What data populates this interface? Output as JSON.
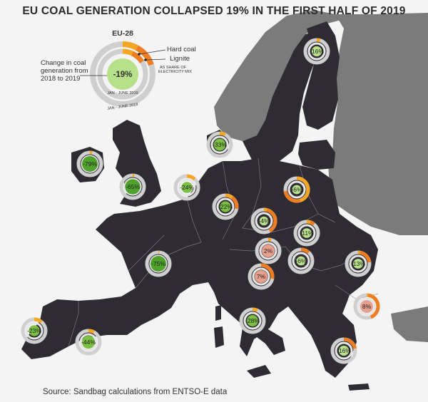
{
  "title": "EU COAL GENERATION COLLAPSED 19% IN THE FIRST HALF OF 2019",
  "source": "Source: Sandbag calculations from ENTSO-E data",
  "colors": {
    "hard_coal": "#f5a623",
    "lignite": "#ef7d22",
    "ring_bg": "#cfcfcf",
    "decrease": "#7bc043",
    "decrease_light": "#b9e08a",
    "decrease_dark": "#4fa32c",
    "increase": "#e8a08e",
    "land": "#2f2b33",
    "non_eu_land": "#7a7a7a",
    "sea": "#f4f4f4"
  },
  "legend": {
    "region": "EU-28",
    "value": "-19%",
    "hard_coal_label": "Hard coal",
    "lignite_label": "Lignite",
    "share_note_line1": "AS SHARE OF",
    "share_note_line2": "ELECTRICITY MIX",
    "change_note_line1": "Change in coal",
    "change_note_line2": "generation from",
    "change_note_line3": "2018 to 2019",
    "period_inner": "JAN - JUNE 2019",
    "period_outer": "JAN - JUNE 2018"
  },
  "countries": [
    {
      "id": "finland",
      "value": "-16%",
      "change": -16,
      "hard": 0.05,
      "lignite": 0.0
    },
    {
      "id": "denmark",
      "value": "-33%",
      "change": -33,
      "hard": 0.08,
      "lignite": 0.0
    },
    {
      "id": "ireland",
      "value": "-79%",
      "change": -79,
      "hard": 0.03,
      "lignite": 0.0
    },
    {
      "id": "uk",
      "value": "-65%",
      "change": -65,
      "hard": 0.02,
      "lignite": 0.0
    },
    {
      "id": "netherlands",
      "value": "-24%",
      "change": -24,
      "hard": 0.12,
      "lignite": 0.0
    },
    {
      "id": "germany",
      "value": "-22%",
      "change": -22,
      "hard": 0.1,
      "lignite": 0.18
    },
    {
      "id": "poland",
      "value": "-6%",
      "change": -6,
      "hard": 0.45,
      "lignite": 0.28
    },
    {
      "id": "czechia",
      "value": "-4%",
      "change": -4,
      "hard": 0.04,
      "lignite": 0.38
    },
    {
      "id": "slovakia",
      "value": "-11%",
      "change": -11,
      "hard": 0.05,
      "lignite": 0.06
    },
    {
      "id": "austria",
      "value": "2%",
      "change": 2,
      "hard": 0.04,
      "lignite": 0.0
    },
    {
      "id": "hungary",
      "value": "-6%",
      "change": -6,
      "hard": 0.0,
      "lignite": 0.12
    },
    {
      "id": "slovenia",
      "value": "7%",
      "change": 7,
      "hard": 0.0,
      "lignite": 0.28
    },
    {
      "id": "france",
      "value": "-75%",
      "change": -75,
      "hard": 0.01,
      "lignite": 0.0
    },
    {
      "id": "romania",
      "value": "-13%",
      "change": -13,
      "hard": 0.03,
      "lignite": 0.2
    },
    {
      "id": "bulgaria",
      "value": "8%",
      "change": 8,
      "hard": 0.02,
      "lignite": 0.42
    },
    {
      "id": "italy",
      "value": "-28%",
      "change": -28,
      "hard": 0.07,
      "lignite": 0.0
    },
    {
      "id": "portugal",
      "value": "-23%",
      "change": -23,
      "hard": 0.11,
      "lignite": 0.0
    },
    {
      "id": "spain",
      "value": "-44%",
      "change": -44,
      "hard": 0.08,
      "lignite": 0.0
    },
    {
      "id": "greece",
      "value": "-16%",
      "change": -16,
      "hard": 0.0,
      "lignite": 0.22
    }
  ]
}
